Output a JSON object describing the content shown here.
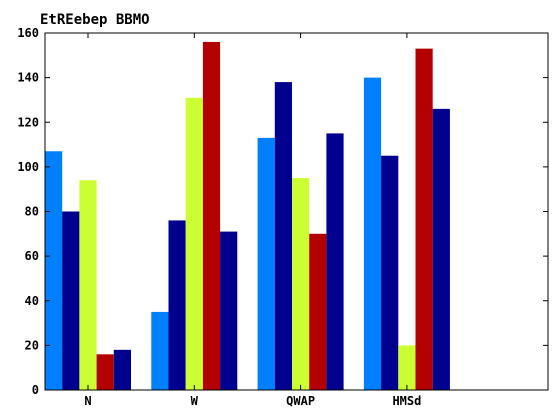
{
  "chart_data": {
    "type": "bar",
    "title": "EtREebep BBMO",
    "xlabel": "",
    "ylabel": "",
    "categories": [
      "N",
      "W",
      "QWAP",
      "HMSd"
    ],
    "ylim": [
      0,
      160
    ],
    "yticks": [
      0,
      20,
      40,
      60,
      80,
      100,
      120,
      140,
      160
    ],
    "grid": false,
    "series": [
      {
        "color": "#0080ff",
        "values": [
          107,
          35,
          113,
          140
        ]
      },
      {
        "color": "#00008f",
        "values": [
          80,
          76,
          138,
          105
        ]
      },
      {
        "color": "#ccff33",
        "values": [
          94,
          131,
          95,
          20
        ]
      },
      {
        "color": "#b30000",
        "values": [
          16,
          156,
          70,
          153
        ]
      },
      {
        "color": "#00008f",
        "values": [
          18,
          71,
          115,
          126
        ]
      }
    ]
  }
}
